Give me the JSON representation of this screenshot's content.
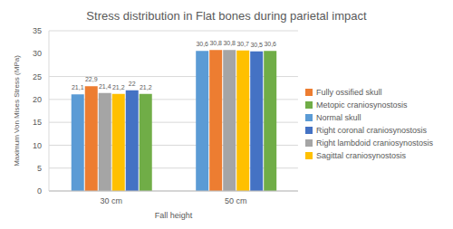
{
  "chart_data": {
    "type": "bar",
    "title": "Stress distribution in Flat bones during parietal impact",
    "x_label": "Fall height",
    "y_label": "Maximum Von Mises Stress (MPa)",
    "categories": [
      "30 cm",
      "50 cm"
    ],
    "series": [
      {
        "name": "Normal skull",
        "color": "#5B9BD5",
        "values": [
          21.1,
          30.6
        ],
        "value_labels": [
          "21,1",
          "30,6"
        ]
      },
      {
        "name": "Fully ossified skull",
        "color": "#ED7D31",
        "values": [
          22.9,
          30.8
        ],
        "value_labels": [
          "22,9",
          "30,8"
        ]
      },
      {
        "name": "Right lambdoid craniosynostosis",
        "color": "#A5A5A5",
        "values": [
          21.4,
          30.8
        ],
        "value_labels": [
          "21,4",
          "30,8"
        ]
      },
      {
        "name": "Sagittal craniosynostosis",
        "color": "#FFC000",
        "values": [
          21.2,
          30.7
        ],
        "value_labels": [
          "21,2",
          "30,7"
        ]
      },
      {
        "name": "Right coronal craniosynostosis",
        "color": "#4472C4",
        "values": [
          22,
          30.5
        ],
        "value_labels": [
          "22",
          "30,5"
        ]
      },
      {
        "name": "Metopic craniosynostosis",
        "color": "#70AD47",
        "values": [
          21.2,
          30.6
        ],
        "value_labels": [
          "21,2",
          "30,6"
        ]
      }
    ],
    "ylim": [
      0,
      35
    ],
    "yticks": [
      0,
      5,
      10,
      15,
      20,
      25,
      30,
      35
    ],
    "grid": true,
    "data_labels": true,
    "legend": "right"
  }
}
